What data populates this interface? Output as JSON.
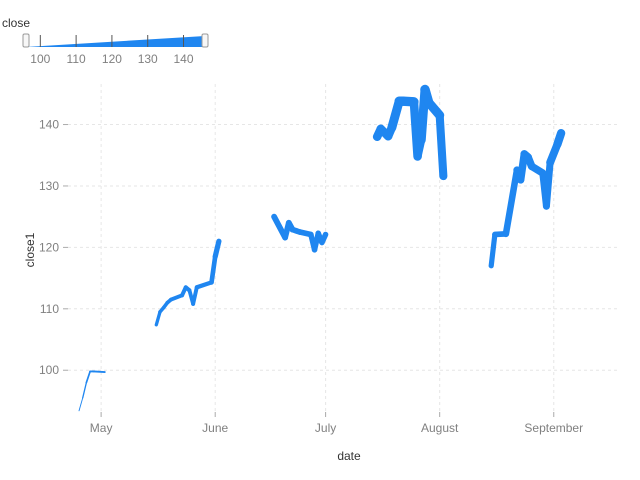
{
  "chart_data": {
    "type": "line",
    "xlabel": "date",
    "ylabel": "close1",
    "x_type": "date",
    "xlim": [
      "2016-04-22",
      "2016-09-19"
    ],
    "ylim": [
      93.2,
      146.6
    ],
    "x_ticks": [
      {
        "date": "2016-05-01",
        "label": "May"
      },
      {
        "date": "2016-06-01",
        "label": "June"
      },
      {
        "date": "2016-07-01",
        "label": "July"
      },
      {
        "date": "2016-08-01",
        "label": "August"
      },
      {
        "date": "2016-09-01",
        "label": "September"
      }
    ],
    "y_ticks": [
      100,
      110,
      120,
      130,
      140
    ],
    "grid": true,
    "color": "#1f86f0",
    "size_encoding": "close",
    "legend": {
      "title": "close",
      "placement": "top-left",
      "range": [
        96,
        146
      ],
      "ticks": [
        100,
        110,
        120,
        130,
        140
      ]
    },
    "series": [
      {
        "points": [
          [
            "2016-04-25",
            93.4
          ],
          [
            "2016-04-26",
            95.5
          ],
          [
            "2016-04-27",
            98.0
          ],
          [
            "2016-04-28",
            99.8
          ],
          [
            "2016-04-29",
            99.8
          ],
          [
            "2016-05-02",
            99.7
          ]
        ]
      },
      {
        "points": [
          [
            "2016-05-16",
            107.4
          ],
          [
            "2016-05-17",
            109.5
          ],
          [
            "2016-05-18",
            110.2
          ],
          [
            "2016-05-19",
            111.0
          ],
          [
            "2016-05-20",
            111.5
          ],
          [
            "2016-05-23",
            112.2
          ],
          [
            "2016-05-24",
            113.5
          ],
          [
            "2016-05-25",
            113.0
          ],
          [
            "2016-05-26",
            110.8
          ],
          [
            "2016-05-27",
            113.5
          ],
          [
            "2016-05-31",
            114.3
          ],
          [
            "2016-06-01",
            118.5
          ],
          [
            "2016-06-02",
            121.0
          ]
        ]
      },
      {
        "points": [
          [
            "2016-06-17",
            125.0
          ],
          [
            "2016-06-20",
            121.6
          ],
          [
            "2016-06-21",
            124.0
          ],
          [
            "2016-06-22",
            122.9
          ],
          [
            "2016-06-23",
            122.7
          ],
          [
            "2016-06-24",
            122.5
          ],
          [
            "2016-06-27",
            122.1
          ],
          [
            "2016-06-28",
            119.6
          ],
          [
            "2016-06-29",
            122.3
          ],
          [
            "2016-06-30",
            120.8
          ],
          [
            "2016-07-01",
            122.1
          ]
        ]
      },
      {
        "points": [
          [
            "2016-07-15",
            138.0
          ],
          [
            "2016-07-16",
            139.3
          ],
          [
            "2016-07-18",
            138.1
          ],
          [
            "2016-07-19",
            139.5
          ],
          [
            "2016-07-21",
            143.8
          ],
          [
            "2016-07-22",
            143.8
          ],
          [
            "2016-07-25",
            143.7
          ],
          [
            "2016-07-26",
            134.8
          ],
          [
            "2016-07-27",
            137.5
          ],
          [
            "2016-07-28",
            145.7
          ],
          [
            "2016-07-29",
            143.6
          ],
          [
            "2016-08-01",
            141.5
          ],
          [
            "2016-08-02",
            131.6
          ]
        ]
      },
      {
        "points": [
          [
            "2016-08-15",
            117.0
          ],
          [
            "2016-08-16",
            122.1
          ],
          [
            "2016-08-19",
            122.2
          ],
          [
            "2016-08-22",
            132.6
          ],
          [
            "2016-08-23",
            131.0
          ],
          [
            "2016-08-24",
            135.2
          ],
          [
            "2016-08-25",
            134.7
          ],
          [
            "2016-08-26",
            133.2
          ],
          [
            "2016-08-29",
            132.1
          ],
          [
            "2016-08-30",
            126.7
          ],
          [
            "2016-08-31",
            133.8
          ],
          [
            "2016-09-02",
            136.8
          ],
          [
            "2016-09-03",
            138.6
          ]
        ]
      }
    ]
  }
}
